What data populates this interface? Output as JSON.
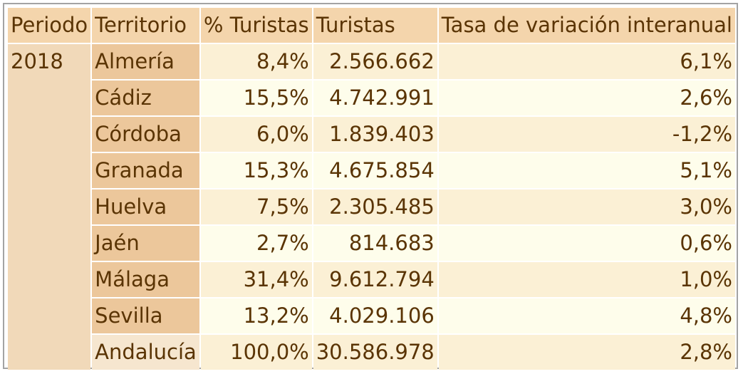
{
  "headers": [
    "Periodo",
    "Territorio",
    "% Turistas",
    "Turistas",
    "Tasa de variación interanual"
  ],
  "period": "2018",
  "rows": [
    {
      "territorio": "Almería",
      "pct": "8,4%",
      "turistas": "2.566.662",
      "tasa": "6,1%"
    },
    {
      "territorio": "Cádiz",
      "pct": "15,5%",
      "turistas": "4.742.991",
      "tasa": "2,6%"
    },
    {
      "territorio": "Córdoba",
      "pct": "6,0%",
      "turistas": "1.839.403",
      "tasa": "-1,2%"
    },
    {
      "territorio": "Granada",
      "pct": "15,3%",
      "turistas": "4.675.854",
      "tasa": "5,1%"
    },
    {
      "territorio": "Huelva",
      "pct": "7,5%",
      "turistas": "2.305.485",
      "tasa": "3,0%"
    },
    {
      "territorio": "Jaén",
      "pct": "2,7%",
      "turistas": "814.683",
      "tasa": "0,6%"
    },
    {
      "territorio": "Málaga",
      "pct": "31,4%",
      "turistas": "9.612.794",
      "tasa": "1,0%"
    },
    {
      "territorio": "Sevilla",
      "pct": "13,2%",
      "turistas": "4.029.106",
      "tasa": "4,8%"
    },
    {
      "territorio": "Andalucía",
      "pct": "100,0%",
      "turistas": "30.586.978",
      "tasa": "2,8%"
    }
  ],
  "colors": {
    "text": "#5a3404",
    "header_bg": "#f4d5ac",
    "territory_bg": "#ecc79b",
    "row_light": "#fefdeb",
    "row_dark": "#fbf0d5",
    "border": "#a3a3a3"
  }
}
